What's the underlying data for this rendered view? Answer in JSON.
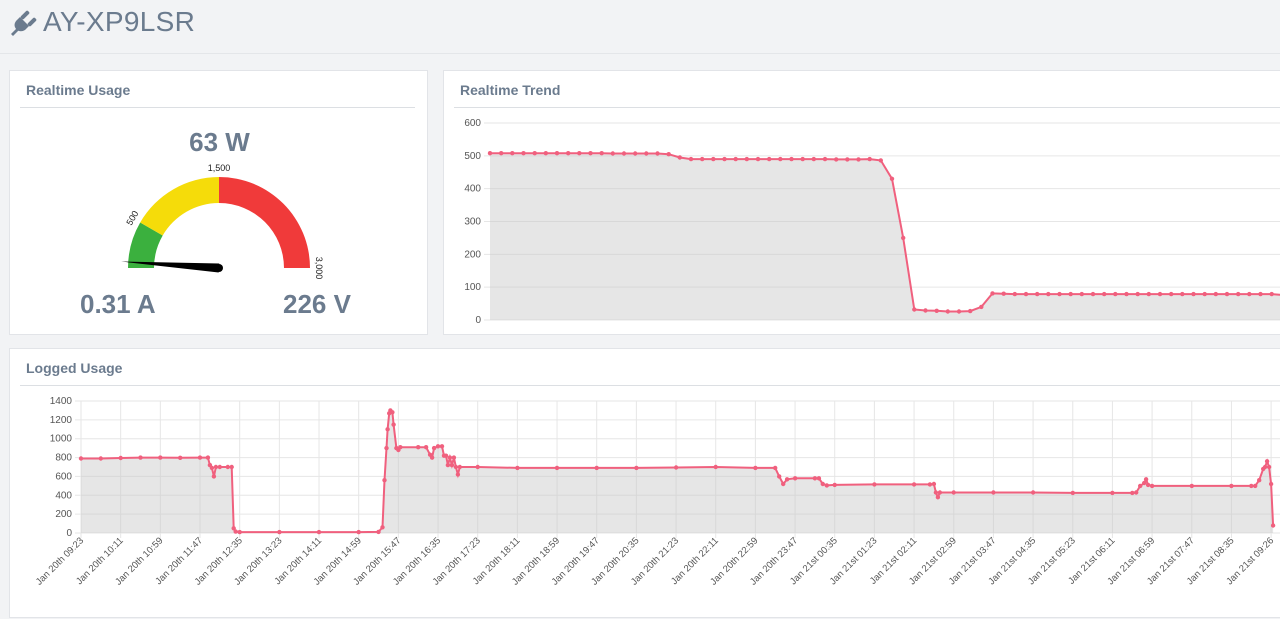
{
  "device": {
    "name": "AY-XP9LSR",
    "icon": "plug-icon"
  },
  "realtime_usage": {
    "title": "Realtime Usage",
    "power": "63 W",
    "current": "0.31 A",
    "voltage": "226 V",
    "gauge": {
      "min": 0,
      "max": 3000,
      "value": 63,
      "ticks": [
        "500",
        "1,500",
        "3,000"
      ],
      "bands": [
        {
          "from": 0,
          "to": 500,
          "color": "#3bb03e"
        },
        {
          "from": 500,
          "to": 1500,
          "color": "#f5dc0a"
        },
        {
          "from": 1500,
          "to": 3000,
          "color": "#f03a3a"
        }
      ]
    }
  },
  "realtime_trend": {
    "title": "Realtime Trend",
    "chart_data": {
      "type": "area",
      "ylim": [
        0,
        600
      ],
      "yticks": [
        "600",
        "500",
        "400",
        "300",
        "200",
        "100",
        "0"
      ],
      "color": "#f0607e",
      "values": [
        508,
        508,
        508,
        508,
        508,
        508,
        508,
        508,
        508,
        508,
        508,
        507,
        507,
        507,
        507,
        507,
        505,
        495,
        490,
        490,
        490,
        490,
        490,
        490,
        490,
        490,
        490,
        490,
        490,
        490,
        490,
        489,
        489,
        489,
        490,
        486,
        430,
        250,
        32,
        29,
        28,
        26,
        26,
        27,
        40,
        81,
        80,
        79,
        79,
        79,
        79,
        79,
        79,
        79,
        79,
        79,
        79,
        79,
        79,
        79,
        79,
        79,
        79,
        79,
        79,
        79,
        79,
        79,
        79,
        79,
        79,
        76,
        69
      ]
    }
  },
  "logged_usage": {
    "title": "Logged Usage",
    "chart_data": {
      "type": "area",
      "ylim": [
        0,
        1400
      ],
      "yticks": [
        "1400",
        "1200",
        "1000",
        "800",
        "600",
        "400",
        "200",
        "0"
      ],
      "color": "#f0607e",
      "xticks": [
        "Jan 20th 09:23",
        "Jan 20th 10:11",
        "Jan 20th 10:59",
        "Jan 20th 11:47",
        "Jan 20th 12:35",
        "Jan 20th 13:23",
        "Jan 20th 14:11",
        "Jan 20th 14:59",
        "Jan 20th 15:47",
        "Jan 20th 16:35",
        "Jan 20th 17:23",
        "Jan 20th 18:11",
        "Jan 20th 18:59",
        "Jan 20th 19:47",
        "Jan 20th 20:35",
        "Jan 20th 21:23",
        "Jan 20th 22:11",
        "Jan 20th 22:59",
        "Jan 20th 23:47",
        "Jan 21st 00:35",
        "Jan 21st 01:23",
        "Jan 21st 02:11",
        "Jan 21st 02:59",
        "Jan 21st 03:47",
        "Jan 21st 04:35",
        "Jan 21st 05:23",
        "Jan 21st 06:11",
        "Jan 21st 06:59",
        "Jan 21st 07:47",
        "Jan 21st 08:35",
        "Jan 21st 09:26"
      ],
      "points": [
        [
          0,
          790
        ],
        [
          0.5,
          790
        ],
        [
          1,
          795
        ],
        [
          1.5,
          800
        ],
        [
          2,
          800
        ],
        [
          2.5,
          798
        ],
        [
          3,
          800
        ],
        [
          3.2,
          800
        ],
        [
          3.25,
          720
        ],
        [
          3.3,
          690
        ],
        [
          3.35,
          600
        ],
        [
          3.4,
          700
        ],
        [
          3.5,
          700
        ],
        [
          3.7,
          700
        ],
        [
          3.8,
          700
        ],
        [
          3.85,
          50
        ],
        [
          3.9,
          15
        ],
        [
          4,
          10
        ],
        [
          5,
          10
        ],
        [
          6,
          10
        ],
        [
          7,
          10
        ],
        [
          7.5,
          12
        ],
        [
          7.6,
          60
        ],
        [
          7.65,
          560
        ],
        [
          7.7,
          900
        ],
        [
          7.73,
          1100
        ],
        [
          7.77,
          1270
        ],
        [
          7.8,
          1300
        ],
        [
          7.85,
          1280
        ],
        [
          7.88,
          1150
        ],
        [
          7.95,
          900
        ],
        [
          8,
          880
        ],
        [
          8.05,
          910
        ],
        [
          8.5,
          910
        ],
        [
          8.7,
          910
        ],
        [
          8.8,
          830
        ],
        [
          8.85,
          800
        ],
        [
          8.9,
          900
        ],
        [
          9,
          920
        ],
        [
          9.1,
          920
        ],
        [
          9.15,
          820
        ],
        [
          9.2,
          820
        ],
        [
          9.25,
          720
        ],
        [
          9.3,
          800
        ],
        [
          9.35,
          720
        ],
        [
          9.4,
          800
        ],
        [
          9.45,
          700
        ],
        [
          9.5,
          620
        ],
        [
          9.55,
          700
        ],
        [
          10,
          700
        ],
        [
          11,
          690
        ],
        [
          12,
          690
        ],
        [
          13,
          690
        ],
        [
          14,
          690
        ],
        [
          15,
          695
        ],
        [
          16,
          700
        ],
        [
          17,
          690
        ],
        [
          17.5,
          690
        ],
        [
          17.6,
          600
        ],
        [
          17.7,
          520
        ],
        [
          17.8,
          570
        ],
        [
          18,
          580
        ],
        [
          18.5,
          580
        ],
        [
          18.6,
          580
        ],
        [
          18.7,
          520
        ],
        [
          18.8,
          505
        ],
        [
          19,
          510
        ],
        [
          20,
          515
        ],
        [
          21,
          515
        ],
        [
          21.4,
          515
        ],
        [
          21.5,
          520
        ],
        [
          21.55,
          430
        ],
        [
          21.6,
          380
        ],
        [
          21.65,
          430
        ],
        [
          22,
          430
        ],
        [
          23,
          430
        ],
        [
          24,
          430
        ],
        [
          25,
          425
        ],
        [
          26,
          425
        ],
        [
          26.5,
          425
        ],
        [
          26.6,
          430
        ],
        [
          26.7,
          500
        ],
        [
          26.8,
          530
        ],
        [
          26.85,
          570
        ],
        [
          26.9,
          510
        ],
        [
          27,
          500
        ],
        [
          28,
          500
        ],
        [
          29,
          500
        ],
        [
          29.5,
          500
        ],
        [
          29.6,
          500
        ],
        [
          29.7,
          560
        ],
        [
          29.8,
          680
        ],
        [
          29.85,
          700
        ],
        [
          29.9,
          760
        ],
        [
          29.95,
          700
        ],
        [
          30,
          520
        ],
        [
          30.05,
          80
        ]
      ]
    }
  }
}
